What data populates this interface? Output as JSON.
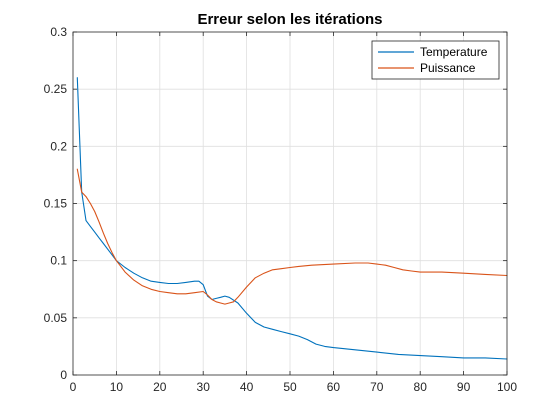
{
  "chart_data": {
    "type": "line",
    "title": "Erreur selon les itérations",
    "xlabel": "",
    "ylabel": "",
    "xlim": [
      0,
      100
    ],
    "ylim": [
      0,
      0.3
    ],
    "xticks": [
      0,
      10,
      20,
      30,
      40,
      50,
      60,
      70,
      80,
      90,
      100
    ],
    "yticks": [
      0,
      0.05,
      0.1,
      0.15,
      0.2,
      0.25,
      0.3
    ],
    "xtick_labels": [
      "0",
      "10",
      "20",
      "30",
      "40",
      "50",
      "60",
      "70",
      "80",
      "90",
      "100"
    ],
    "ytick_labels": [
      "0",
      "0.05",
      "0.1",
      "0.15",
      "0.2",
      "0.25",
      "0.3"
    ],
    "grid": true,
    "legend_position": "top-right",
    "series": [
      {
        "name": "Temperature",
        "color": "#0072BD",
        "x": [
          1,
          2,
          3,
          4,
          5,
          6,
          7,
          8,
          9,
          10,
          12,
          14,
          16,
          18,
          20,
          22,
          24,
          26,
          28,
          29,
          30,
          31,
          32,
          33,
          34,
          35,
          36,
          38,
          40,
          42,
          44,
          46,
          48,
          50,
          52,
          54,
          56,
          58,
          60,
          65,
          70,
          75,
          80,
          85,
          90,
          95,
          100
        ],
        "y": [
          0.26,
          0.16,
          0.135,
          0.13,
          0.125,
          0.12,
          0.115,
          0.11,
          0.105,
          0.1,
          0.094,
          0.089,
          0.085,
          0.082,
          0.081,
          0.08,
          0.08,
          0.081,
          0.082,
          0.082,
          0.079,
          0.069,
          0.066,
          0.067,
          0.068,
          0.069,
          0.068,
          0.063,
          0.054,
          0.046,
          0.042,
          0.04,
          0.038,
          0.036,
          0.034,
          0.031,
          0.027,
          0.025,
          0.024,
          0.022,
          0.02,
          0.018,
          0.017,
          0.016,
          0.015,
          0.015,
          0.014
        ]
      },
      {
        "name": "Puissance",
        "color": "#D95319",
        "x": [
          1,
          2,
          3,
          4,
          5,
          6,
          7,
          8,
          9,
          10,
          12,
          14,
          16,
          18,
          20,
          22,
          24,
          26,
          28,
          30,
          31,
          32,
          33,
          34,
          35,
          36,
          37,
          38,
          40,
          42,
          44,
          46,
          48,
          50,
          52,
          55,
          60,
          65,
          68,
          70,
          72,
          74,
          76,
          78,
          80,
          85,
          90,
          95,
          100
        ],
        "y": [
          0.18,
          0.16,
          0.156,
          0.15,
          0.143,
          0.134,
          0.124,
          0.115,
          0.107,
          0.1,
          0.09,
          0.083,
          0.078,
          0.075,
          0.073,
          0.072,
          0.071,
          0.071,
          0.072,
          0.073,
          0.07,
          0.066,
          0.064,
          0.063,
          0.062,
          0.063,
          0.064,
          0.068,
          0.077,
          0.085,
          0.089,
          0.092,
          0.093,
          0.094,
          0.095,
          0.096,
          0.097,
          0.098,
          0.098,
          0.097,
          0.096,
          0.094,
          0.092,
          0.091,
          0.09,
          0.09,
          0.089,
          0.088,
          0.087
        ]
      }
    ]
  }
}
